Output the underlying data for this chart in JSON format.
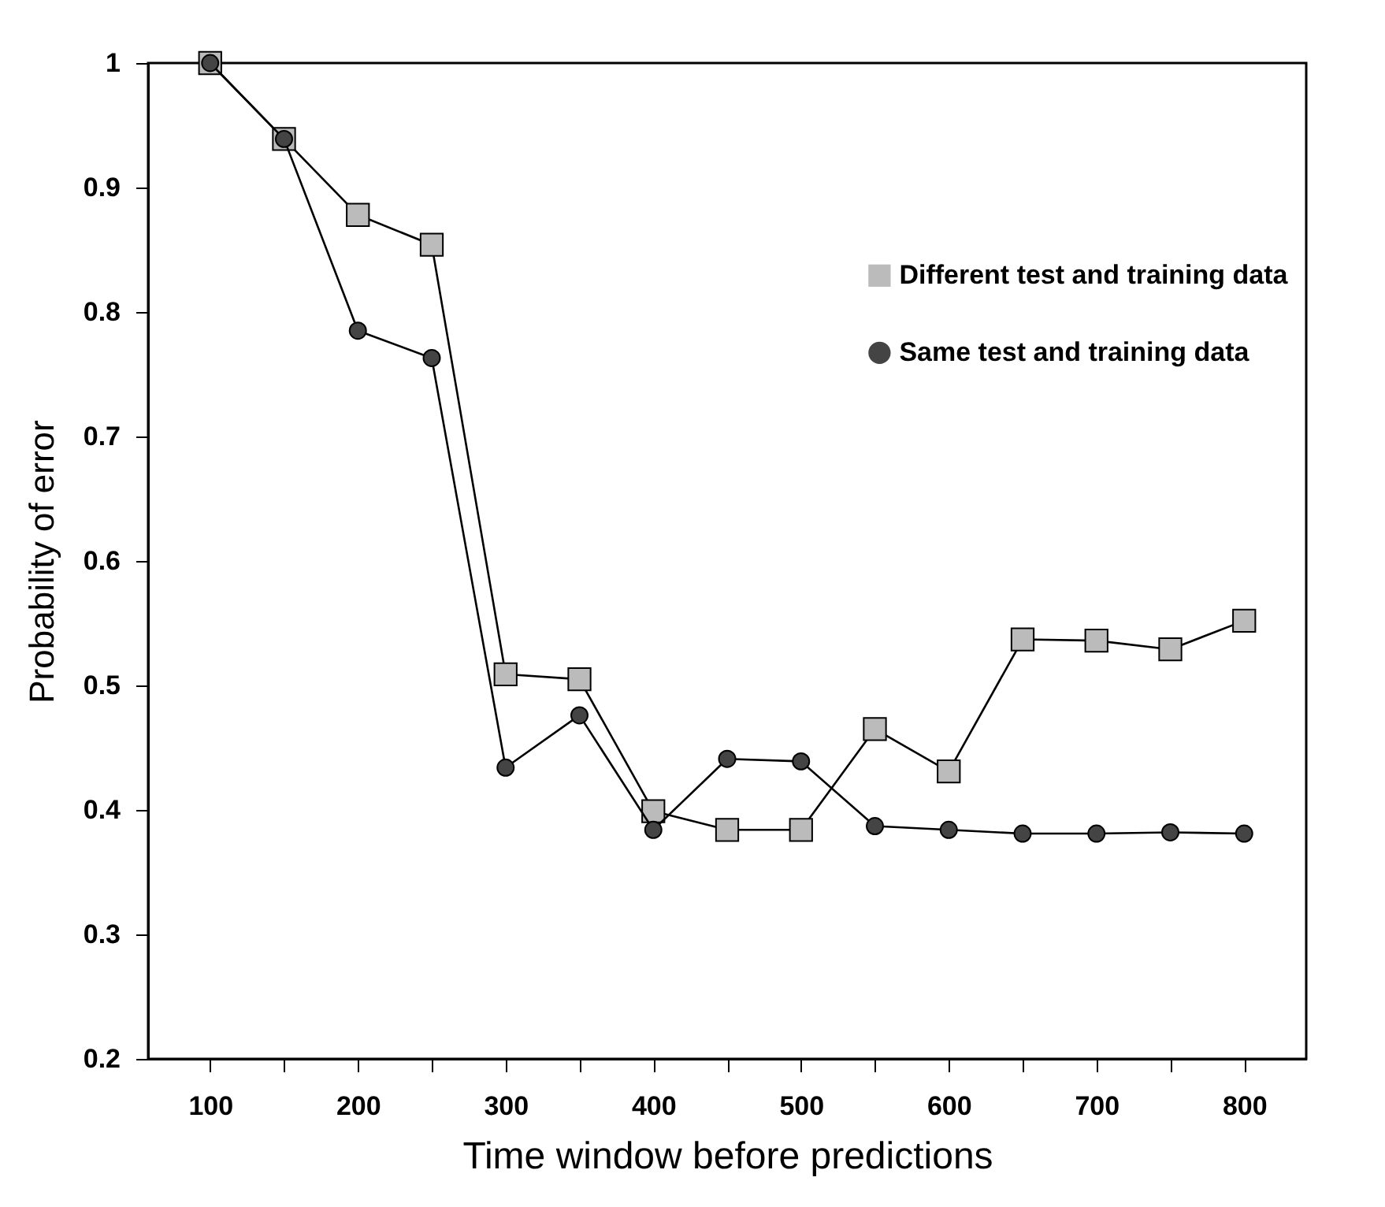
{
  "chart_data": {
    "type": "line",
    "xlabel": "Time window before predictions",
    "ylabel": "Probability of error",
    "x": [
      100,
      150,
      200,
      250,
      300,
      350,
      400,
      450,
      500,
      550,
      600,
      650,
      700,
      750,
      800
    ],
    "series": [
      {
        "name": "Different test and training data",
        "color": "#bbbbbb",
        "marker": "square",
        "values": [
          1.0,
          0.939,
          0.878,
          0.854,
          0.509,
          0.505,
          0.399,
          0.384,
          0.384,
          0.465,
          0.431,
          0.537,
          0.536,
          0.529,
          0.552
        ]
      },
      {
        "name": "Same test and training data",
        "color": "#444444",
        "marker": "circle",
        "values": [
          1.0,
          0.939,
          0.785,
          0.763,
          0.434,
          0.476,
          0.384,
          0.441,
          0.439,
          0.387,
          0.384,
          0.381,
          0.381,
          0.382,
          0.381
        ]
      }
    ],
    "xlim": [
      58,
      842
    ],
    "xticks": [
      100,
      {
        "value": 150,
        "label": null
      },
      200,
      {
        "value": 250,
        "label": null
      },
      300,
      {
        "value": 350,
        "label": null
      },
      400,
      {
        "value": 450,
        "label": null
      },
      500,
      {
        "value": 550,
        "label": null
      },
      600,
      {
        "value": 650,
        "label": null
      },
      700,
      {
        "value": 750,
        "label": null
      },
      800
    ],
    "ylim": [
      0.2,
      1
    ],
    "yticks": [
      0.2,
      0.3,
      0.4,
      0.5,
      0.6,
      0.7,
      0.8,
      0.9,
      1
    ],
    "grid": false,
    "legend": "top right",
    "line_style": "solid"
  }
}
